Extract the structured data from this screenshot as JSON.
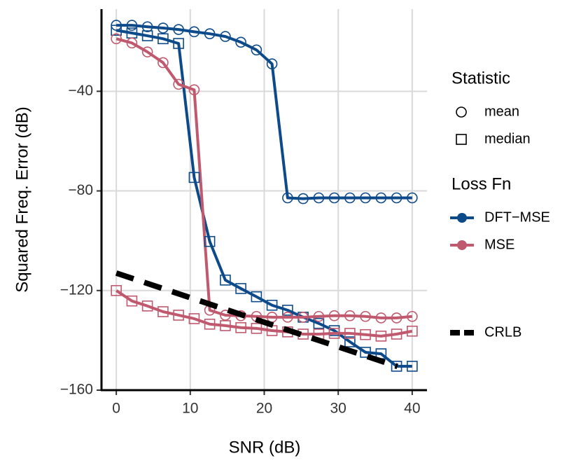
{
  "chart_data": {
    "type": "line",
    "xlabel": "SNR (dB)",
    "ylabel": "Squared Freq. Error (dB)",
    "xlim": [
      -2,
      42
    ],
    "ylim": [
      -160,
      -7
    ],
    "xticks": [
      0,
      10,
      20,
      30,
      40
    ],
    "yticks": [
      {
        "value": -160,
        "label": "−160"
      },
      {
        "value": -120,
        "label": "−120"
      },
      {
        "value": -80,
        "label": "−80"
      },
      {
        "value": -40,
        "label": "−40"
      }
    ],
    "grid": true,
    "x": [
      0,
      2.11,
      4.21,
      6.32,
      8.42,
      10.53,
      12.63,
      14.74,
      16.84,
      18.95,
      21.05,
      23.16,
      25.26,
      27.37,
      29.47,
      31.58,
      33.68,
      35.79,
      37.89,
      40
    ],
    "series": [
      {
        "color": "#0d4a8a",
        "marker": "circle",
        "values": [
          -13.5,
          -13.5,
          -14.1,
          -14.6,
          -15.2,
          -16.1,
          -16.9,
          -18.0,
          -20.3,
          -23.4,
          -29.0,
          -82.8,
          -83.1,
          -82.8,
          -82.8,
          -82.8,
          -82.8,
          -82.8,
          -82.8,
          -82.8
        ]
      },
      {
        "color": "#0d4a8a",
        "marker": "square",
        "values": [
          -15.5,
          -16.6,
          -17.7,
          -18.9,
          -20.8,
          -74.6,
          -100.3,
          -115.8,
          -119.2,
          -122.5,
          -125.9,
          -127.9,
          -130.7,
          -133.2,
          -136.1,
          -140.6,
          -144.8,
          -145.4,
          -150.4,
          -150.4
        ]
      },
      {
        "color": "#c0596e",
        "marker": "circle",
        "values": [
          -18.9,
          -20.6,
          -24.2,
          -28.5,
          -37.2,
          -39.4,
          -127.9,
          -129.9,
          -130.1,
          -130.4,
          -130.7,
          -130.7,
          -130.7,
          -130.4,
          -130.1,
          -130.1,
          -130.4,
          -131.0,
          -131.0,
          -130.4
        ]
      },
      {
        "color": "#c0596e",
        "marker": "square",
        "values": [
          -120.0,
          -124.2,
          -126.2,
          -128.5,
          -129.9,
          -131.3,
          -133.5,
          -134.1,
          -134.9,
          -135.2,
          -136.1,
          -136.6,
          -137.5,
          -137.5,
          -137.2,
          -137.2,
          -137.7,
          -138.3,
          -137.5,
          -136.3
        ]
      }
    ],
    "bound": {
      "color": "#000000",
      "dashed": true,
      "x": [
        0,
        38
      ],
      "values": [
        -113,
        -150.5
      ]
    },
    "legend": [
      {
        "title": "Statistic",
        "items": [
          {
            "label": "mean",
            "marker": "circle"
          },
          {
            "label": "median",
            "marker": "square"
          }
        ]
      },
      {
        "title": "Loss Fn",
        "items": [
          {
            "label": "DFT−MSE",
            "color": "#0d4a8a"
          },
          {
            "label": "MSE",
            "color": "#c0596e"
          }
        ]
      },
      {
        "items": [
          {
            "label": "CRLB",
            "color": "#000000",
            "dashed": true
          }
        ]
      }
    ]
  }
}
